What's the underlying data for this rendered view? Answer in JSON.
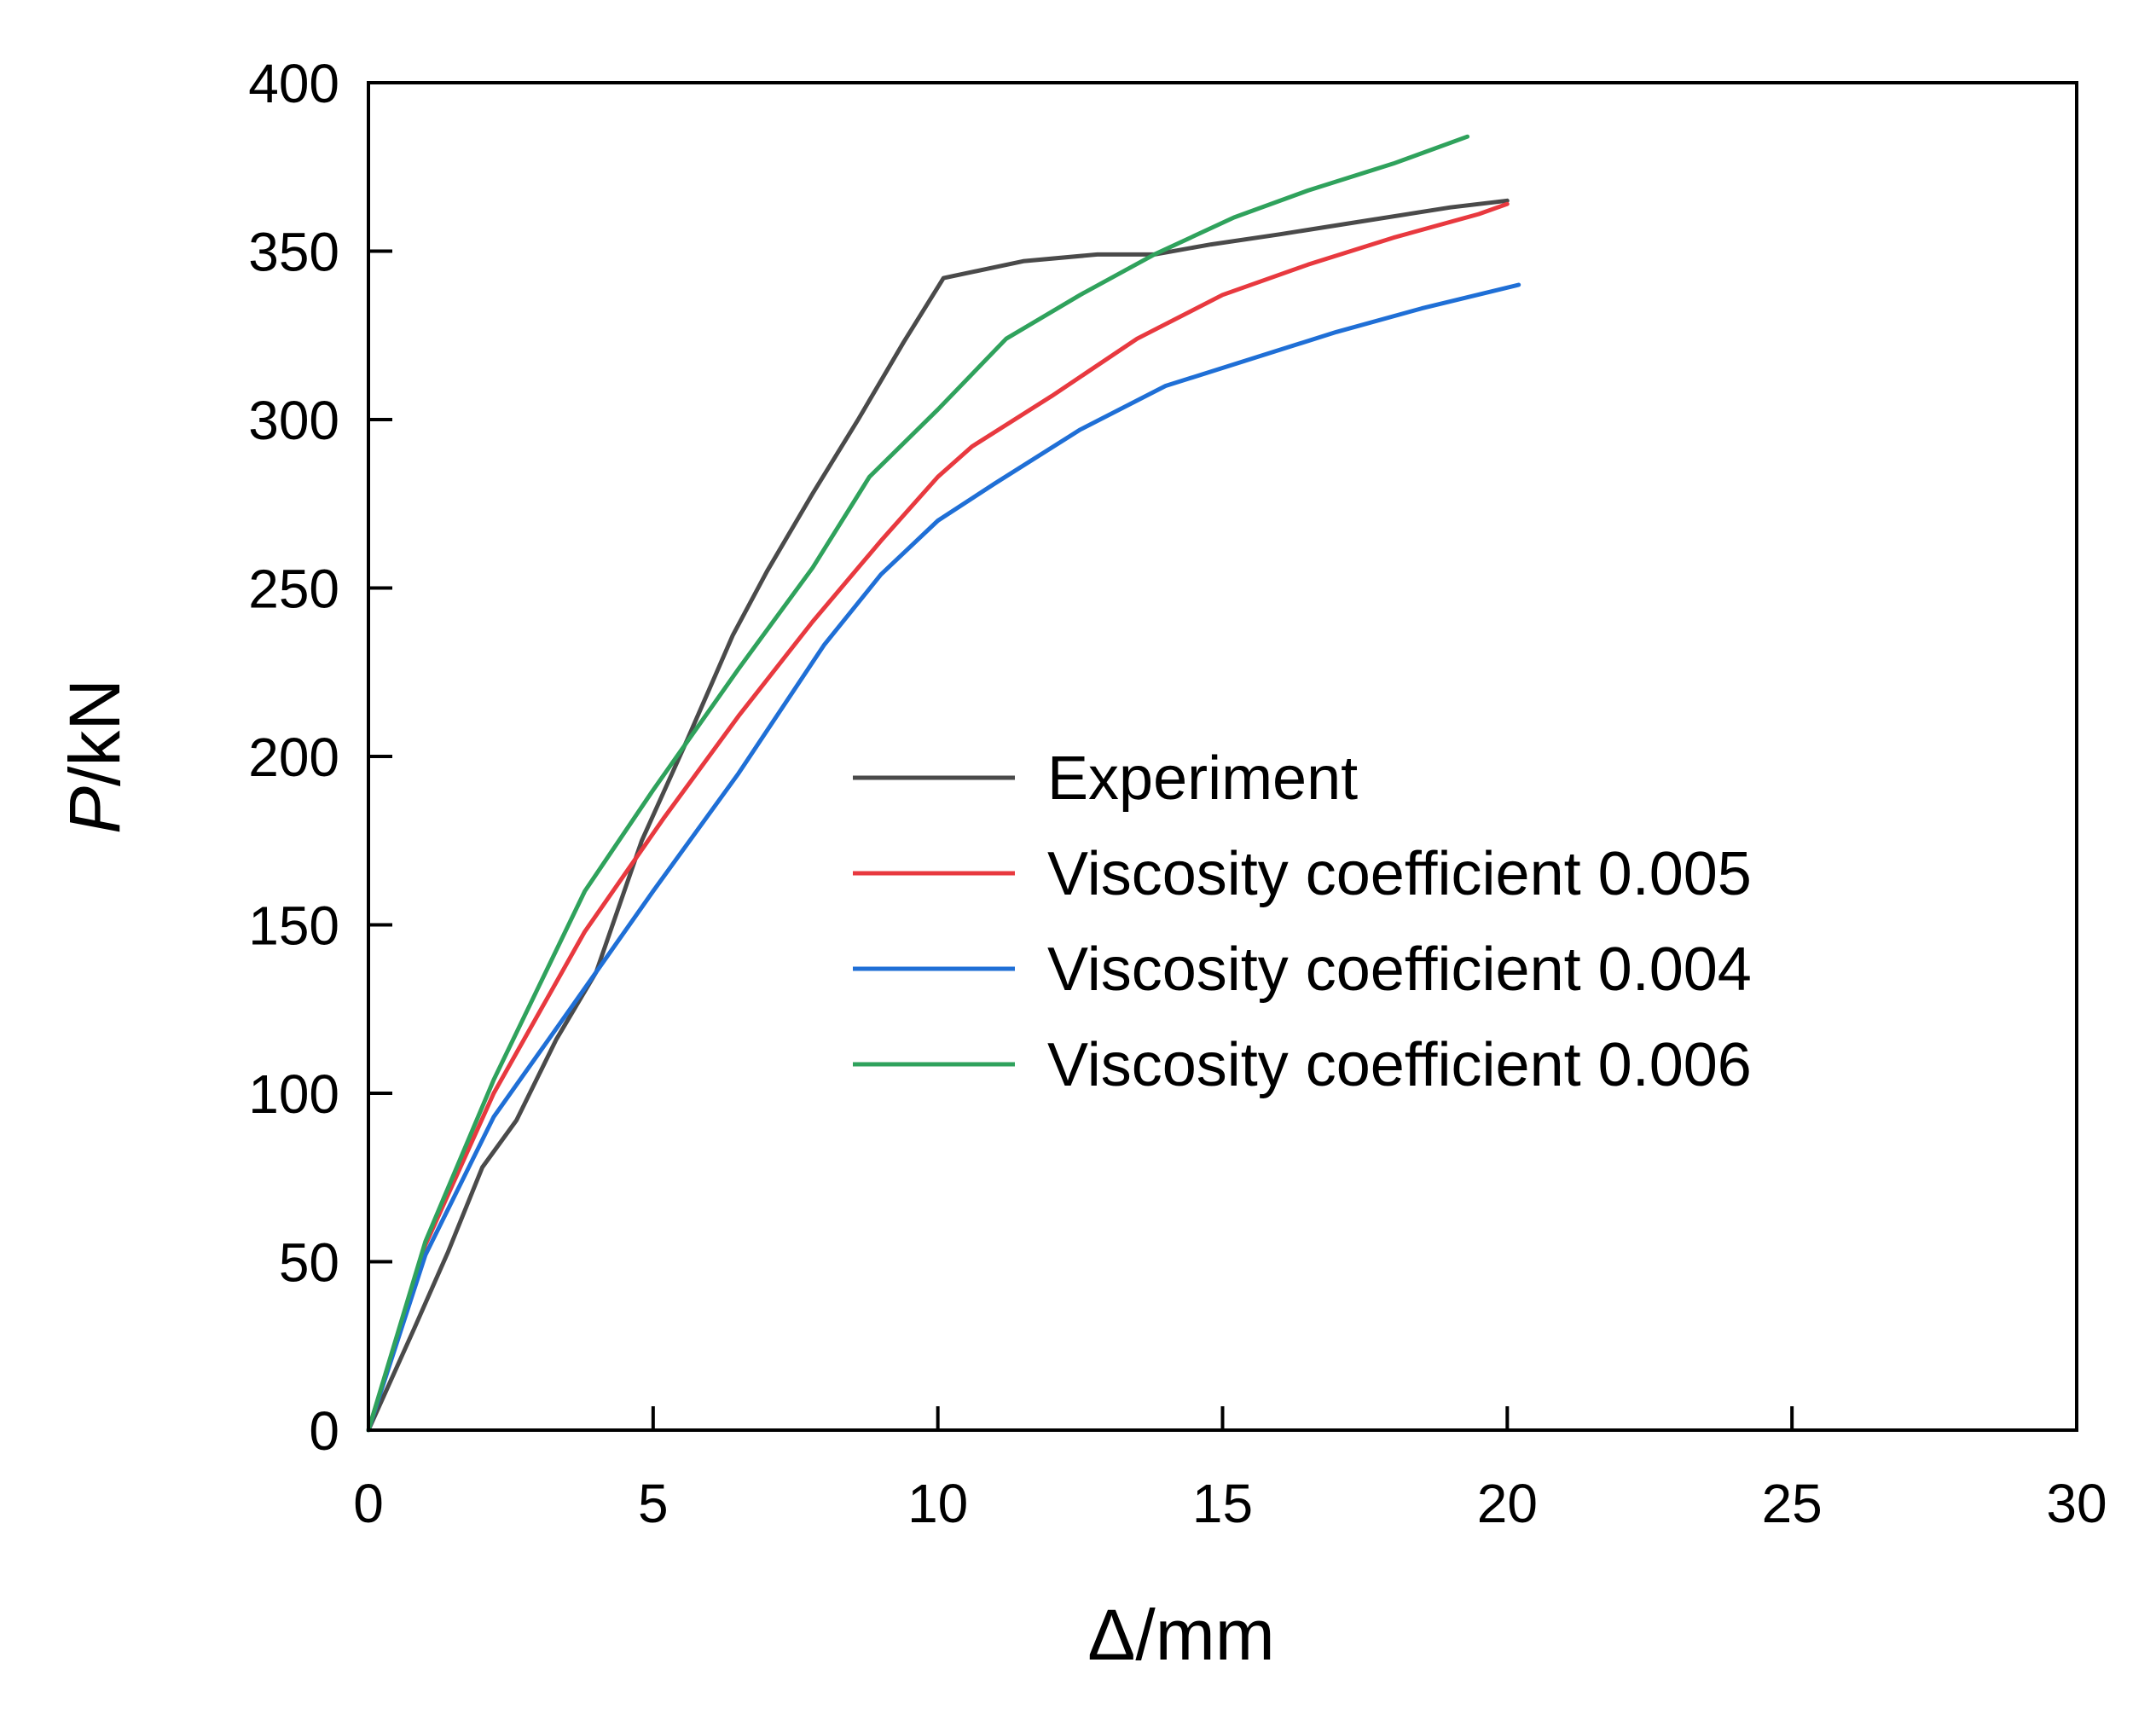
{
  "chart_data": {
    "type": "line",
    "title": "",
    "xlabel": "Δ/mm",
    "ylabel_italic": "P",
    "ylabel_rest": "/kN",
    "xlim": [
      0,
      30
    ],
    "ylim": [
      0,
      400
    ],
    "xticks": [
      0,
      5,
      10,
      15,
      20,
      25,
      30
    ],
    "yticks": [
      0,
      50,
      100,
      150,
      200,
      250,
      300,
      350,
      400
    ],
    "grid": false,
    "legend_position": "center-right",
    "series": [
      {
        "name": "Experiment",
        "color": "#4a4a4a",
        "x": [
          0,
          0.8,
          1.4,
          2.0,
          2.6,
          3.3,
          4.0,
          4.8,
          5.6,
          6.4,
          7.0,
          7.8,
          8.6,
          9.4,
          10.1,
          11.5,
          12.8,
          13.8,
          14.8,
          16.0,
          17.5,
          19.0,
          20.0
        ],
        "y": [
          0,
          30,
          53,
          78,
          92,
          116,
          136,
          175,
          205,
          236,
          255,
          278,
          300,
          323,
          342,
          347,
          349,
          349,
          352,
          355,
          359,
          363,
          365
        ]
      },
      {
        "name": "Viscosity coefficient 0.005",
        "color": "#e8393f",
        "x": [
          0,
          1.0,
          2.2,
          3.8,
          5.2,
          6.5,
          7.8,
          9.0,
          10.0,
          10.6,
          12.0,
          13.5,
          15.0,
          16.5,
          18.0,
          19.5,
          20.0
        ],
        "y": [
          0,
          55,
          100,
          148,
          182,
          212,
          240,
          264,
          283,
          292,
          307,
          324,
          337,
          346,
          354,
          361,
          364
        ]
      },
      {
        "name": "Viscosity coefficient 0.004",
        "color": "#1f6fd6",
        "x": [
          0,
          1.0,
          2.2,
          3.5,
          5.0,
          6.5,
          8.0,
          9.0,
          10.0,
          11.0,
          12.5,
          14.0,
          15.5,
          17.0,
          18.5,
          20.2
        ],
        "y": [
          0,
          52,
          93,
          124,
          160,
          195,
          233,
          254,
          270,
          281,
          297,
          310,
          318,
          326,
          333,
          340
        ]
      },
      {
        "name": "Viscosity coefficient 0.006",
        "color": "#2fa25c",
        "x": [
          0,
          1.0,
          2.2,
          3.8,
          5.0,
          6.5,
          7.8,
          8.8,
          10.0,
          11.2,
          12.5,
          13.8,
          15.2,
          16.5,
          18.0,
          19.3
        ],
        "y": [
          0,
          56,
          104,
          160,
          190,
          226,
          256,
          283,
          303,
          324,
          337,
          349,
          360,
          368,
          376,
          384
        ]
      }
    ]
  }
}
